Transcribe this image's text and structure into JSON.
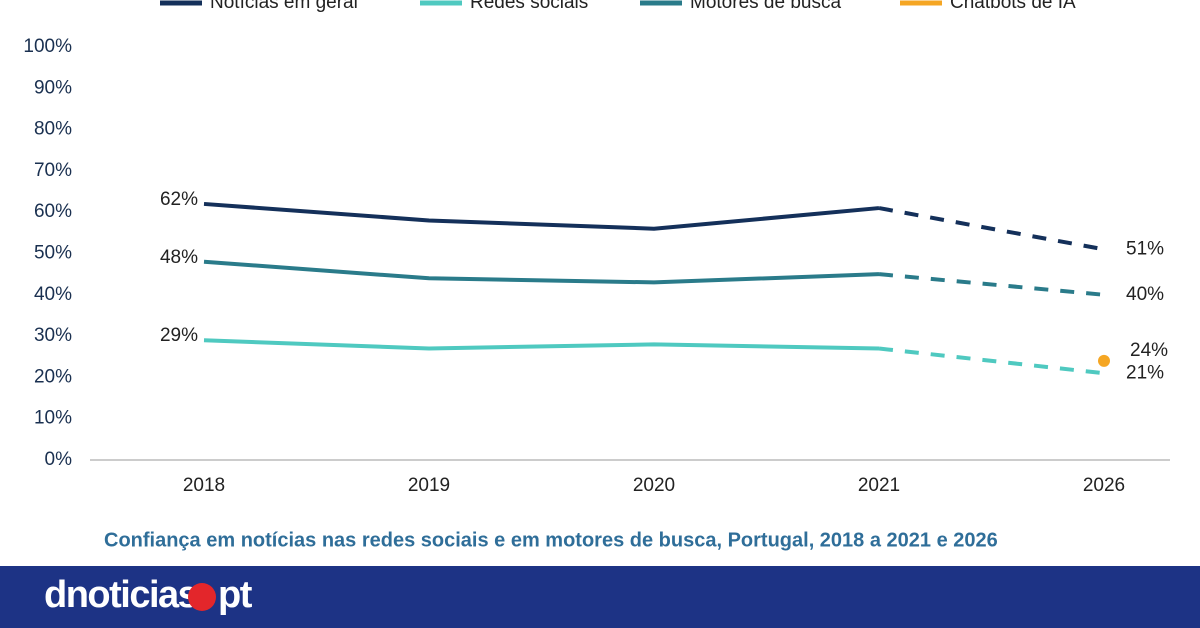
{
  "chart_data": {
    "type": "line",
    "categories": [
      "2018",
      "2019",
      "2020",
      "2021",
      "2026"
    ],
    "dashed_from": "2021",
    "series": [
      {
        "name": "Notícias em geral",
        "color": "#14305a",
        "values": [
          62,
          58,
          56,
          61,
          51
        ],
        "value_labels": [
          "62%",
          null,
          null,
          null,
          "51%"
        ]
      },
      {
        "name": "Redes sociais",
        "color": "#4fc9c0",
        "values": [
          29,
          27,
          28,
          27,
          21
        ],
        "value_labels": [
          "29%",
          null,
          null,
          null,
          "21%"
        ]
      },
      {
        "name": "Motores de busca",
        "color": "#2a7b8a",
        "values": [
          48,
          44,
          43,
          45,
          40
        ],
        "value_labels": [
          "48%",
          null,
          null,
          null,
          "40%"
        ]
      },
      {
        "name": "Chatbots de IA",
        "color": "#f5a623",
        "values": [
          null,
          null,
          null,
          null,
          24
        ],
        "value_labels": [
          null,
          null,
          null,
          null,
          "24%"
        ]
      }
    ],
    "ylim": [
      0,
      100
    ],
    "yticks": [
      {
        "value": 0,
        "label": "0%"
      },
      {
        "value": 10,
        "label": "10%"
      },
      {
        "value": 20,
        "label": "20%"
      },
      {
        "value": 30,
        "label": "30%"
      },
      {
        "value": 40,
        "label": "40%"
      },
      {
        "value": 50,
        "label": "50%"
      },
      {
        "value": 60,
        "label": "60%"
      },
      {
        "value": 70,
        "label": "70%"
      },
      {
        "value": 80,
        "label": "80%"
      },
      {
        "value": 90,
        "label": "90%"
      },
      {
        "value": 100,
        "label": "100%"
      }
    ],
    "grid": false,
    "caption": "Confiança em notícias nas redes sociais e em motores de busca, Portugal, 2018 a 2021 e 2026"
  },
  "banner": {
    "logo": "dnoticias",
    "logo_suffix": "pt"
  }
}
